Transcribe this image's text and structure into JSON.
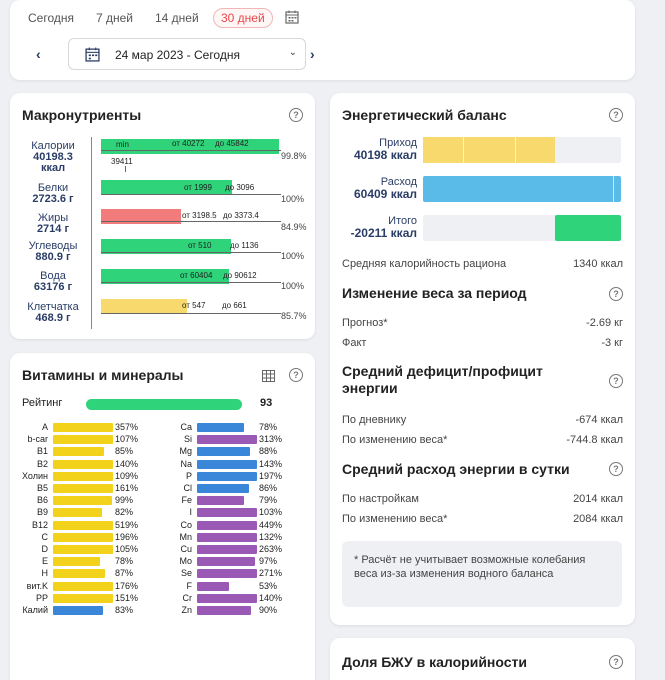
{
  "period": {
    "tabs": [
      "Сегодня",
      "7 дней",
      "14 дней",
      "30 дней"
    ],
    "active": "30 дней",
    "date_range": "24 мар 2023 - Сегодня"
  },
  "macros": {
    "title": "Макронутриенты",
    "rows": [
      {
        "name": "Калории",
        "value": "40198.3",
        "unit": "ккал",
        "from": "от 40272",
        "to": "до 45842",
        "pct": "99.8%",
        "extra_top": "min",
        "extra_below": "39411",
        "color": "#2ed37a",
        "fill": 0.99
      },
      {
        "name": "Белки",
        "value": "2723.6 г",
        "from": "от 1999",
        "to": "до 3096",
        "pct": "100%",
        "color": "#2ed37a",
        "fill": 0.74
      },
      {
        "name": "Жиры",
        "value": "2714 г",
        "from": "от 3198.5",
        "to": "до 3373.4",
        "pct": "84.9%",
        "color": "#f27b7b",
        "fill": 0.85
      },
      {
        "name": "Углеводы",
        "value": "880.9 г",
        "from": "от 510",
        "to": "до 1136",
        "pct": "100%",
        "color": "#2ed37a",
        "fill": 0.71
      },
      {
        "name": "Вода",
        "value": "63176 г",
        "from": "от 60404",
        "to": "до 90612",
        "pct": "100%",
        "color": "#2ed37a",
        "fill": 0.7
      },
      {
        "name": "Клетчатка",
        "value": "468.9 г",
        "from": "от 547",
        "to": "до 661",
        "pct": "85.7%",
        "color": "#f7d96e",
        "fill": 0.47
      }
    ]
  },
  "energy": {
    "title": "Энергетический баланс",
    "income_label": "Приход",
    "income_value": "40198 ккал",
    "expense_label": "Расход",
    "expense_value": "60409 ккал",
    "total_label": "Итого",
    "total_value": "-20211 ккал",
    "avg_label": "Средняя калорийность рациона",
    "avg_value": "1340 ккал",
    "weight_title": "Изменение веса за период",
    "forecast_label": "Прогноз*",
    "forecast_value": "-2.69 кг",
    "fact_label": "Факт",
    "fact_value": "-3 кг",
    "deficit_title": "Средний дефицит/профицит энергии",
    "diary_label": "По дневнику",
    "diary_value": "-674 ккал",
    "weight_change_label": "По изменению веса*",
    "weight_change_value": "-744.8 ккал",
    "expense_title": "Средний расход энергии в сутки",
    "settings_label": "По настройкам",
    "settings_value": "2014 ккал",
    "weight_change2_label": "По изменению веса*",
    "weight_change2_value": "2084 ккал",
    "note": "* Расчёт не учитывает возможные колебания веса из-за изменения водного баланса"
  },
  "vitamins": {
    "title": "Витамины и минералы",
    "rating_label": "Рейтинг",
    "rating_value": "93",
    "left": [
      {
        "name": "A",
        "pct": "357%",
        "color": "#f2d21b",
        "fill": 1
      },
      {
        "name": "b-car",
        "pct": "107%",
        "color": "#f2d21b",
        "fill": 1
      },
      {
        "name": "B1",
        "pct": "85%",
        "color": "#f2d21b",
        "fill": 0.85
      },
      {
        "name": "B2",
        "pct": "140%",
        "color": "#f2d21b",
        "fill": 1
      },
      {
        "name": "Холин",
        "pct": "109%",
        "color": "#f2d21b",
        "fill": 1
      },
      {
        "name": "B5",
        "pct": "161%",
        "color": "#f2d21b",
        "fill": 1
      },
      {
        "name": "B6",
        "pct": "99%",
        "color": "#f2d21b",
        "fill": 0.99
      },
      {
        "name": "B9",
        "pct": "82%",
        "color": "#f2d21b",
        "fill": 0.82
      },
      {
        "name": "B12",
        "pct": "519%",
        "color": "#f2d21b",
        "fill": 1
      },
      {
        "name": "C",
        "pct": "196%",
        "color": "#f2d21b",
        "fill": 1
      },
      {
        "name": "D",
        "pct": "105%",
        "color": "#f2d21b",
        "fill": 1
      },
      {
        "name": "E",
        "pct": "78%",
        "color": "#f2d21b",
        "fill": 0.78
      },
      {
        "name": "H",
        "pct": "87%",
        "color": "#f2d21b",
        "fill": 0.87
      },
      {
        "name": "вит.K",
        "pct": "176%",
        "color": "#f2d21b",
        "fill": 1
      },
      {
        "name": "PP",
        "pct": "151%",
        "color": "#f2d21b",
        "fill": 1
      },
      {
        "name": "Калий",
        "pct": "83%",
        "color": "#3a86d8",
        "fill": 0.83
      }
    ],
    "right": [
      {
        "name": "Ca",
        "pct": "78%",
        "color": "#3a86d8",
        "fill": 0.78
      },
      {
        "name": "Si",
        "pct": "313%",
        "color": "#9b59b6",
        "fill": 1
      },
      {
        "name": "Mg",
        "pct": "88%",
        "color": "#3a86d8",
        "fill": 0.88
      },
      {
        "name": "Na",
        "pct": "143%",
        "color": "#3a86d8",
        "fill": 1
      },
      {
        "name": "P",
        "pct": "197%",
        "color": "#3a86d8",
        "fill": 1
      },
      {
        "name": "Cl",
        "pct": "86%",
        "color": "#3a86d8",
        "fill": 0.86
      },
      {
        "name": "Fe",
        "pct": "79%",
        "color": "#9b59b6",
        "fill": 0.79
      },
      {
        "name": "I",
        "pct": "103%",
        "color": "#9b59b6",
        "fill": 1
      },
      {
        "name": "Co",
        "pct": "449%",
        "color": "#9b59b6",
        "fill": 1
      },
      {
        "name": "Mn",
        "pct": "132%",
        "color": "#9b59b6",
        "fill": 1
      },
      {
        "name": "Cu",
        "pct": "263%",
        "color": "#9b59b6",
        "fill": 1
      },
      {
        "name": "Mo",
        "pct": "97%",
        "color": "#9b59b6",
        "fill": 0.97
      },
      {
        "name": "Se",
        "pct": "271%",
        "color": "#9b59b6",
        "fill": 1
      },
      {
        "name": "F",
        "pct": "53%",
        "color": "#9b59b6",
        "fill": 0.53
      },
      {
        "name": "Cr",
        "pct": "140%",
        "color": "#9b59b6",
        "fill": 1
      },
      {
        "name": "Zn",
        "pct": "90%",
        "color": "#9b59b6",
        "fill": 0.9
      }
    ]
  },
  "bju": {
    "title": "Доля БЖУ в калорийности"
  },
  "colors": {
    "green": "#2ed37a",
    "yellow": "#f7d96e",
    "blue": "#5bbbe8",
    "accent": "#e8474a"
  }
}
